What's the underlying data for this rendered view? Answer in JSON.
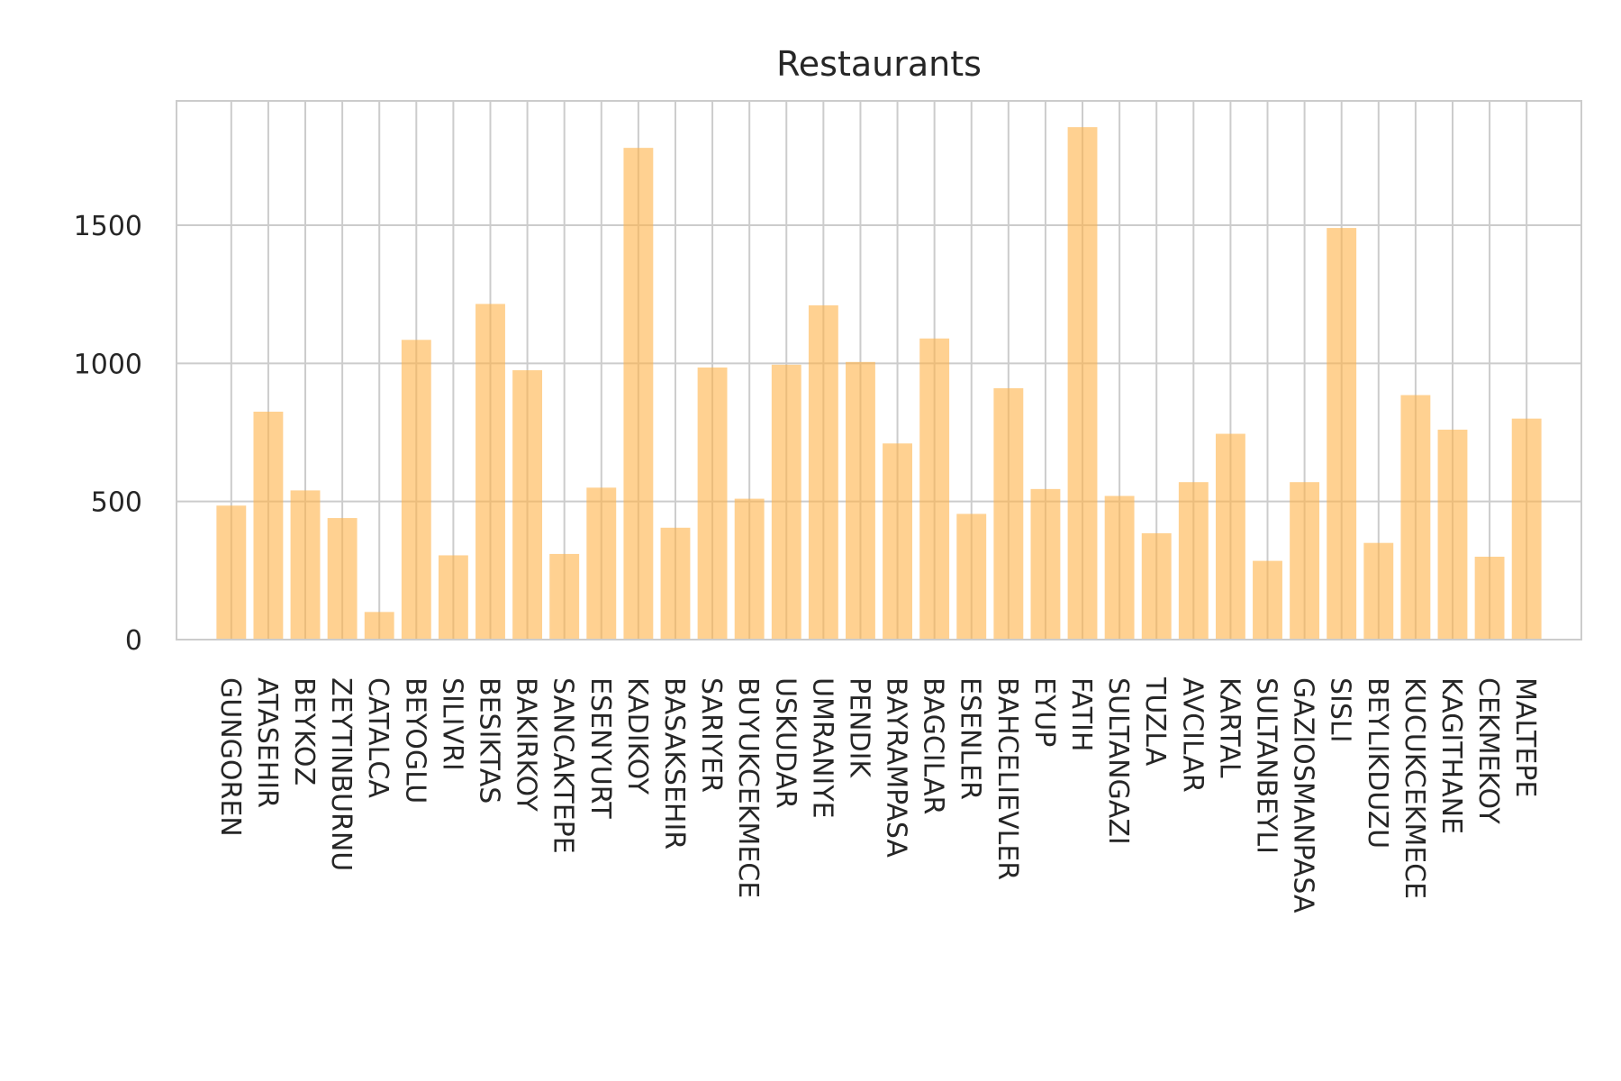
{
  "chart_data": {
    "type": "bar",
    "title": "Restaurants",
    "xlabel": "",
    "ylabel": "",
    "categories": [
      "GUNGOREN",
      "ATASEHIR",
      "BEYKOZ",
      "ZEYTINBURNU",
      "CATALCA",
      "BEYOGLU",
      "SILIVRI",
      "BESIKTAS",
      "BAKIRKOY",
      "SANCAKTEPE",
      "ESENYURT",
      "KADIKOY",
      "BASAKSEHIR",
      "SARIYER",
      "BUYUKCEKMECE",
      "USKUDAR",
      "UMRANIYE",
      "PENDIK",
      "BAYRAMPASA",
      "BAGCILAR",
      "ESENLER",
      "BAHCELIEVLER",
      "EYUP",
      "FATIH",
      "SULTANGAZI",
      "TUZLA",
      "AVCILAR",
      "KARTAL",
      "SULTANBEYLI",
      "GAZIOSMANPASA",
      "SISLI",
      "BEYLIKDUZU",
      "KUCUKCEKMECE",
      "KAGITHANE",
      "CEKMEKOY",
      "MALTEPE"
    ],
    "values": [
      485,
      825,
      540,
      440,
      100,
      1085,
      305,
      1215,
      975,
      310,
      550,
      1780,
      405,
      985,
      510,
      995,
      1210,
      1005,
      710,
      1090,
      455,
      910,
      545,
      1855,
      520,
      385,
      570,
      745,
      285,
      570,
      1490,
      350,
      885,
      760,
      300,
      800
    ],
    "yticks": [
      0,
      500,
      1000,
      1500
    ],
    "ytick_labels": [
      "0",
      "500",
      "1000",
      "1500"
    ],
    "ylim": [
      0,
      1950
    ],
    "grid": true,
    "legend": "none",
    "bar_color": "#ffb347",
    "bar_opacity": 0.6,
    "grid_color": "#cccccc",
    "axis_color": "#cccccc",
    "text_color": "#262626"
  }
}
